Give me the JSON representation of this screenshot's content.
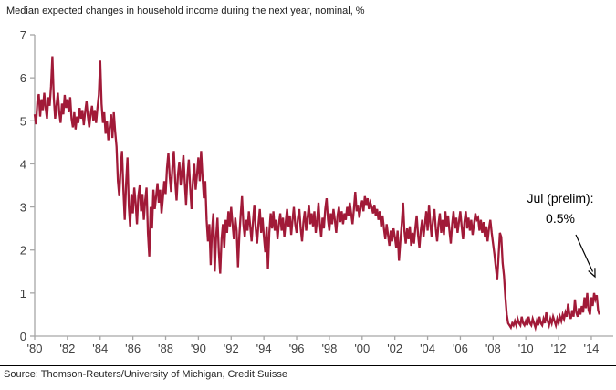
{
  "page_title": "Median expected changes in household income during the next year, nominal, %",
  "source_line": "Source: Thomson-Reuters/University of Michigan, Credit Suisse",
  "annotation": {
    "line1": "Jul (prelim):",
    "line2": "0.5%"
  },
  "colors": {
    "line": "#A11A38",
    "axis": "#A6A6A6",
    "tick_label": "#404040",
    "separator": "#000000",
    "annotation_arrow": "#000000"
  },
  "chart_data": {
    "type": "line",
    "title": "Median expected changes in household income during the next year, nominal, %",
    "xlabel": "",
    "ylabel": "%",
    "ylim": [
      0,
      7
    ],
    "grid": false,
    "legend": "none",
    "y_ticks": [
      0,
      1,
      2,
      3,
      4,
      5,
      6,
      7
    ],
    "x_ticks": [
      {
        "label": "'80",
        "year": 1980
      },
      {
        "label": "'82",
        "year": 1982
      },
      {
        "label": "'84",
        "year": 1984
      },
      {
        "label": "'86",
        "year": 1986
      },
      {
        "label": "'88",
        "year": 1988
      },
      {
        "label": "'90",
        "year": 1990
      },
      {
        "label": "'92",
        "year": 1992
      },
      {
        "label": "'94",
        "year": 1994
      },
      {
        "label": "'96",
        "year": 1996
      },
      {
        "label": "'98",
        "year": 1998
      },
      {
        "label": "'00",
        "year": 2000
      },
      {
        "label": "'02",
        "year": 2002
      },
      {
        "label": "'04",
        "year": 2004
      },
      {
        "label": "'06",
        "year": 2006
      },
      {
        "label": "'08",
        "year": 2008
      },
      {
        "label": "'10",
        "year": 2010
      },
      {
        "label": "'12",
        "year": 2012
      },
      {
        "label": "'14",
        "year": 2014
      }
    ],
    "x_start_year": 1980,
    "x_step_months": 1,
    "annotation": {
      "text": "Jul (prelim): 0.5%",
      "points_to": {
        "year": 2014.5,
        "value": 0.5
      }
    },
    "series": [
      {
        "name": "Median expected change in household income, nominal %",
        "values": [
          5.15,
          4.92,
          5.45,
          5.62,
          5.1,
          5.5,
          5.25,
          5.65,
          5.3,
          5.05,
          5.55,
          5.35,
          5.8,
          6.5,
          5.55,
          5.05,
          5.35,
          5.65,
          5.2,
          4.95,
          5.4,
          5.15,
          5.6,
          5.3,
          5.5,
          5.2,
          5.55,
          5.05,
          4.85,
          5.2,
          4.8,
          5.1,
          4.95,
          5.3,
          5.05,
          5.25,
          4.9,
          5.2,
          5.45,
          5.1,
          4.85,
          5.15,
          5.35,
          5.0,
          5.25,
          4.95,
          5.3,
          5.6,
          6.4,
          5.4,
          4.95,
          5.2,
          4.7,
          5.0,
          4.55,
          4.85,
          5.15,
          4.6,
          5.2,
          4.75,
          4.4,
          3.6,
          3.25,
          3.9,
          4.3,
          3.4,
          2.7,
          3.55,
          4.15,
          3.0,
          2.55,
          3.3,
          2.85,
          3.45,
          3.1,
          2.6,
          3.25,
          3.5,
          2.9,
          3.3,
          2.7,
          3.15,
          3.45,
          2.4,
          1.85,
          3.0,
          2.5,
          3.4,
          2.95,
          3.25,
          3.55,
          3.1,
          3.4,
          2.85,
          3.2,
          3.6,
          3.3,
          3.9,
          4.25,
          3.7,
          3.35,
          3.95,
          4.3,
          3.6,
          3.15,
          3.75,
          4.05,
          3.5,
          3.85,
          4.2,
          3.55,
          3.05,
          3.7,
          4.1,
          3.45,
          2.95,
          3.6,
          4.0,
          3.4,
          3.75,
          4.15,
          3.6,
          4.3,
          3.7,
          3.2,
          3.6,
          2.7,
          2.2,
          2.6,
          1.65,
          2.45,
          2.85,
          1.5,
          2.3,
          2.75,
          1.95,
          1.45,
          2.25,
          2.6,
          2.05,
          2.7,
          2.4,
          2.9,
          2.55,
          3.0,
          2.6,
          2.25,
          2.75,
          2.45,
          1.6,
          2.35,
          2.8,
          3.25,
          2.6,
          2.3,
          2.7,
          2.45,
          2.9,
          2.55,
          2.2,
          2.65,
          3.05,
          2.5,
          2.15,
          2.6,
          2.95,
          2.4,
          2.75,
          2.3,
          1.95,
          2.55,
          1.55,
          2.4,
          2.85,
          2.5,
          2.9,
          2.45,
          2.7,
          2.25,
          2.6,
          2.85,
          2.45,
          2.75,
          2.3,
          2.65,
          2.95,
          2.55,
          2.8,
          2.35,
          2.7,
          3.0,
          2.6,
          2.4,
          2.75,
          2.95,
          2.5,
          2.2,
          2.65,
          2.9,
          2.45,
          2.75,
          3.05,
          2.6,
          2.85,
          2.55,
          2.9,
          2.4,
          2.7,
          3.1,
          2.6,
          2.3,
          2.75,
          2.5,
          2.95,
          3.2,
          2.7,
          2.45,
          2.85,
          2.6,
          2.95,
          2.7,
          2.4,
          2.8,
          3.0,
          2.65,
          2.9,
          2.6,
          2.85,
          2.7,
          3.0,
          2.8,
          3.1,
          2.85,
          2.6,
          2.95,
          3.35,
          2.9,
          3.05,
          2.75,
          3.0,
          3.15,
          2.9,
          3.25,
          3.05,
          3.2,
          2.95,
          3.1,
          3.0,
          2.85,
          3.05,
          2.8,
          2.95,
          2.7,
          2.9,
          2.55,
          2.8,
          2.5,
          2.25,
          2.6,
          2.35,
          2.1,
          2.45,
          2.2,
          2.5,
          2.3,
          2.05,
          2.45,
          1.75,
          2.2,
          2.6,
          3.1,
          2.45,
          2.15,
          2.5,
          2.25,
          2.55,
          2.1,
          2.4,
          2.15,
          2.5,
          2.8,
          2.35,
          2.05,
          2.45,
          2.7,
          2.3,
          2.6,
          2.9,
          2.45,
          3.05,
          2.6,
          2.3,
          2.7,
          2.95,
          2.5,
          2.2,
          2.6,
          2.85,
          2.4,
          2.7,
          2.35,
          2.9,
          2.55,
          2.8,
          2.45,
          2.15,
          2.6,
          2.9,
          2.5,
          2.75,
          2.4,
          2.65,
          2.9,
          2.55,
          2.25,
          2.65,
          2.9,
          2.5,
          2.75,
          2.45,
          2.7,
          2.35,
          2.6,
          2.85,
          2.7,
          2.75,
          2.45,
          2.7,
          2.4,
          2.65,
          2.3,
          2.55,
          2.2,
          2.5,
          2.7,
          2.4,
          2.15,
          1.9,
          1.6,
          1.3,
          1.85,
          2.4,
          2.3,
          1.7,
          1.4,
          0.9,
          0.5,
          0.3,
          0.25,
          0.2,
          0.3,
          0.25,
          0.35,
          0.25,
          0.4,
          0.3,
          0.25,
          0.45,
          0.3,
          0.25,
          0.35,
          0.25,
          0.45,
          0.3,
          0.25,
          0.4,
          0.3,
          0.2,
          0.35,
          0.25,
          0.45,
          0.3,
          0.25,
          0.4,
          0.3,
          0.55,
          0.35,
          0.25,
          0.4,
          0.3,
          0.45,
          0.35,
          0.25,
          0.4,
          0.3,
          0.45,
          0.35,
          0.5,
          0.4,
          0.55,
          0.45,
          0.75,
          0.5,
          0.4,
          0.6,
          0.45,
          0.85,
          0.55,
          0.45,
          0.65,
          0.5,
          0.7,
          0.55,
          0.9,
          0.65,
          1.0,
          0.6,
          0.5,
          0.9,
          0.7,
          1.0,
          0.85,
          0.95,
          0.6,
          0.5
        ]
      }
    ]
  }
}
